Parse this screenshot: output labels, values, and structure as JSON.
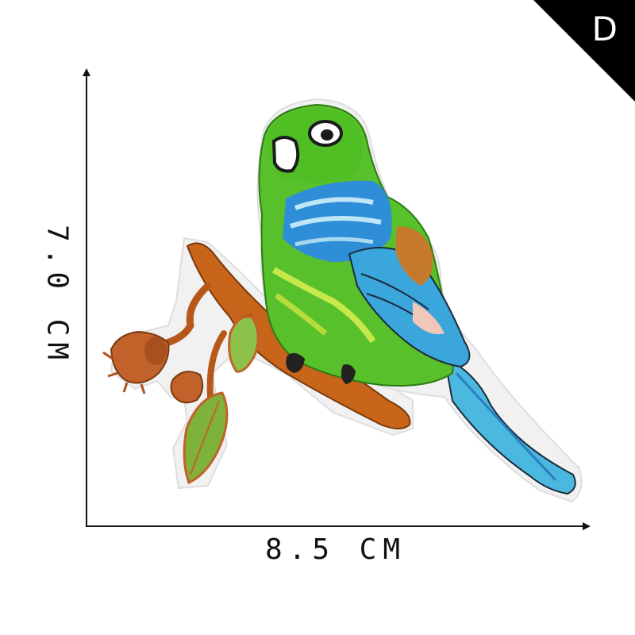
{
  "corner_badge": {
    "letter": "D"
  },
  "dimensions": {
    "width_label": "8.5 CM",
    "height_label": "7.0 CM"
  }
}
